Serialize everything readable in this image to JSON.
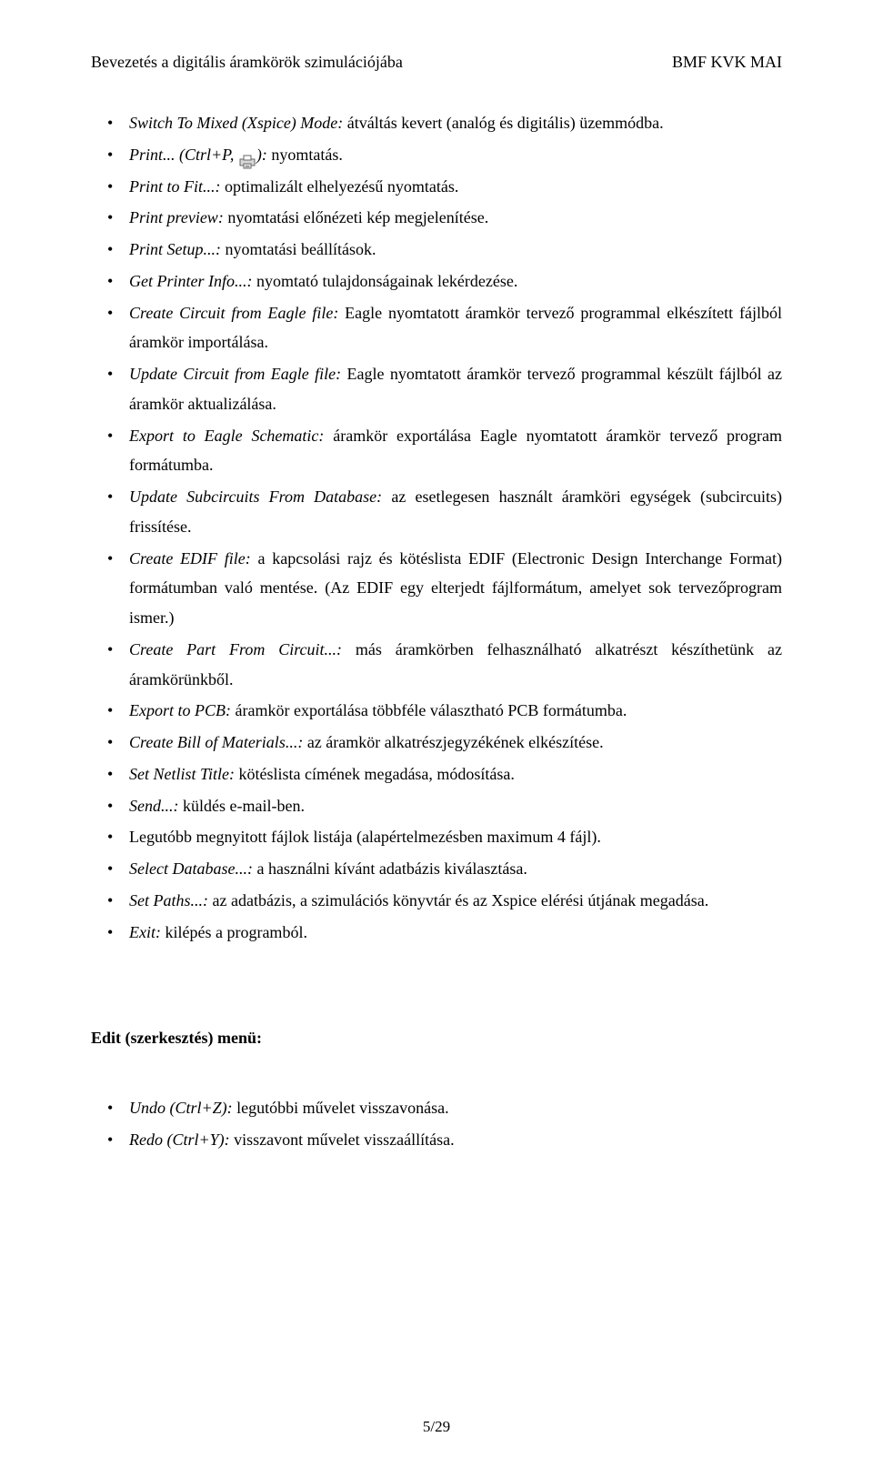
{
  "header": {
    "left": "Bevezetés a digitális áramkörök szimulációjába",
    "right": "BMF KVK MAI"
  },
  "printer_icon": {
    "stroke": "#666666",
    "fill_paper": "#ffffff",
    "fill_body": "#d8d8d8"
  },
  "items": [
    {
      "lead": "Switch To Mixed (Xspice) Mode:",
      "rest": " átváltás kevert (analóg és digitális) üzemmódba."
    },
    {
      "lead": "Print... (Ctrl+P, ",
      "icon": true,
      "lead2": "):",
      "rest": " nyomtatás."
    },
    {
      "lead": "Print to Fit...:",
      "rest": " optimalizált elhelyezésű nyomtatás."
    },
    {
      "lead": "Print preview:",
      "rest": " nyomtatási előnézeti kép megjelenítése."
    },
    {
      "lead": "Print Setup...:",
      "rest": " nyomtatási beállítások."
    },
    {
      "lead": "Get Printer Info...:",
      "rest": " nyomtató tulajdonságainak lekérdezése."
    },
    {
      "lead": "Create Circuit from Eagle file:",
      "rest": " Eagle nyomtatott áramkör tervező programmal elkészített fájlból áramkör importálása."
    },
    {
      "lead": "Update Circuit from Eagle file:",
      "rest": " Eagle nyomtatott áramkör tervező programmal készült fájlból az áramkör aktualizálása."
    },
    {
      "lead": "Export to Eagle Schematic:",
      "rest": " áramkör exportálása Eagle nyomtatott áramkör tervező program formátumba."
    },
    {
      "lead": "Update Subcircuits From Database:",
      "rest": " az esetlegesen használt áramköri egységek (subcircuits) frissítése."
    },
    {
      "lead": "Create EDIF file:",
      "rest": " a kapcsolási rajz és kötéslista EDIF (Electronic Design Interchange Format) formátumban való mentése. (Az EDIF egy elterjedt fájlformátum, amelyet sok tervezőprogram ismer.)"
    },
    {
      "lead": "Create Part From Circuit...:",
      "rest": " más áramkörben felhasználható alkatrészt készíthetünk az áramkörünkből."
    },
    {
      "lead": "Export to PCB:",
      "rest": " áramkör exportálása többféle választható PCB formátumba."
    },
    {
      "lead": "Create Bill of Materials...:",
      "rest": " az áramkör alkatrészjegyzékének elkészítése."
    },
    {
      "lead": "Set Netlist Title:",
      "rest": " kötéslista címének megadása, módosítása."
    },
    {
      "lead": "Send...:",
      "rest": " küldés e-mail-ben."
    },
    {
      "lead": "",
      "rest": "Legutóbb megnyitott fájlok listája (alapértelmezésben maximum 4 fájl)."
    },
    {
      "lead": "Select Database...:",
      "rest": " a használni kívánt adatbázis kiválasztása."
    },
    {
      "lead": "Set Paths...:",
      "rest": " az adatbázis, a szimulációs könyvtár és az Xspice elérési útjának megadása."
    },
    {
      "lead": "Exit:",
      "rest": " kilépés a programból."
    }
  ],
  "section_heading": "Edit (szerkesztés) menü:",
  "items2": [
    {
      "lead": "Undo (Ctrl+Z):",
      "rest": " legutóbbi művelet visszavonása."
    },
    {
      "lead": "Redo (Ctrl+Y):",
      "rest": " visszavont művelet visszaállítása."
    }
  ],
  "footer": {
    "page": "5/29"
  }
}
